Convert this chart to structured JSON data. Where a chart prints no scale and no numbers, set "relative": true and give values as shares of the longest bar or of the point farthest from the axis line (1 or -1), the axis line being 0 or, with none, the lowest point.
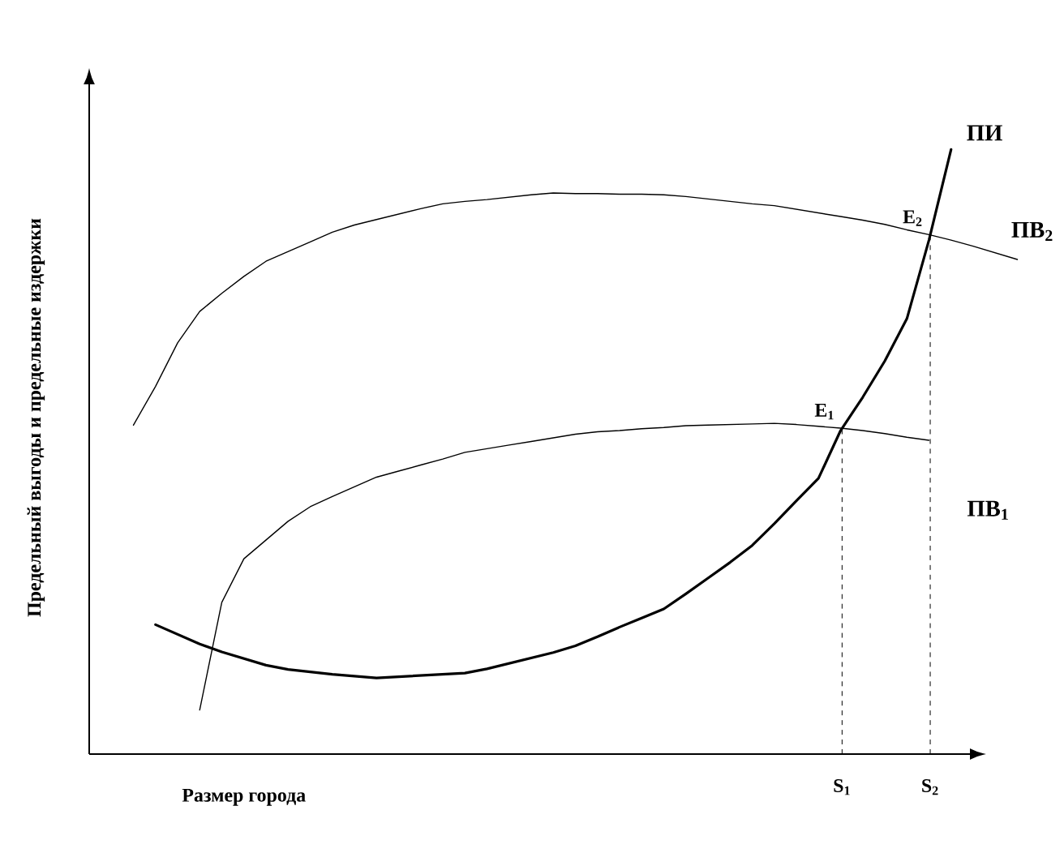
{
  "chart_data": {
    "type": "line",
    "relative": true,
    "xlabel": "Размер города",
    "ylabel": "Предельный выгоды и предельные издержки",
    "line_style": "solid",
    "categories": [
      null,
      null,
      null,
      null,
      null,
      null,
      null,
      null,
      null,
      null,
      null,
      null,
      null,
      null,
      null,
      null,
      null,
      null,
      null,
      null,
      null,
      null,
      null,
      null,
      null,
      null,
      null,
      null,
      null,
      null,
      null,
      null,
      null,
      null,
      null,
      null,
      null,
      null,
      null,
      null,
      null,
      null,
      null
    ],
    "series": [
      {
        "name": "ПИ",
        "color": "#000000",
        "values": [
          null,
          null,
          null,
          0.214,
          0.198,
          0.182,
          0.169,
          0.158,
          0.147,
          0.14,
          0.136,
          0.132,
          0.129,
          0.126,
          0.128,
          0.13,
          0.132,
          0.134,
          0.141,
          0.15,
          0.159,
          0.168,
          0.179,
          0.194,
          0.21,
          0.225,
          0.24,
          0.265,
          0.291,
          0.317,
          0.345,
          0.381,
          0.419,
          0.456,
          0.535,
          0.59,
          0.65,
          0.72,
          0.85,
          1.0,
          null,
          null,
          null
        ]
      },
      {
        "name": "ПВ$_{2}$",
        "color": "#000000",
        "values": [
          null,
          null,
          0.544,
          0.608,
          0.68,
          0.732,
          0.762,
          0.79,
          0.815,
          0.831,
          0.847,
          0.863,
          0.875,
          0.884,
          0.893,
          0.902,
          0.91,
          0.914,
          0.917,
          0.921,
          0.925,
          0.928,
          0.927,
          0.927,
          0.926,
          0.926,
          0.925,
          0.922,
          0.918,
          0.914,
          0.91,
          0.907,
          0.901,
          0.895,
          0.889,
          0.883,
          0.876,
          0.867,
          0.859,
          0.85,
          0.84,
          0.829,
          0.818
        ]
      },
      {
        "name": "ПВ$_{1}$",
        "color": "#000000",
        "values": [
          null,
          null,
          null,
          null,
          null,
          0.073,
          0.251,
          0.323,
          0.354,
          0.385,
          0.409,
          0.426,
          0.442,
          0.458,
          0.468,
          0.478,
          0.488,
          0.499,
          0.505,
          0.511,
          0.517,
          0.523,
          0.529,
          0.533,
          0.535,
          0.538,
          0.54,
          0.543,
          0.544,
          0.545,
          0.546,
          0.547,
          0.545,
          0.542,
          0.539,
          0.535,
          0.53,
          0.524,
          0.519,
          null,
          null,
          null,
          null
        ]
      }
    ],
    "annotations": [
      "E$_{1}$",
      "E$_{2}$",
      "S$_{1}$",
      "S$_{2}$"
    ]
  }
}
